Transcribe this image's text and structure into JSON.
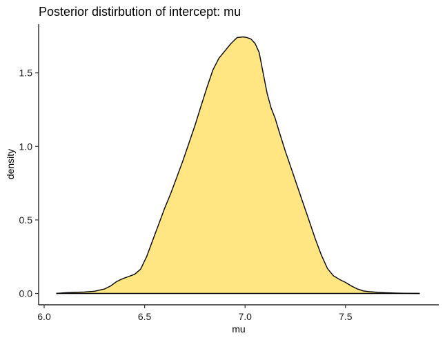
{
  "chart_data": {
    "type": "area",
    "title": "Posterior distirbution of intercept: mu",
    "xlabel": "mu",
    "ylabel": "density",
    "xlim": [
      6.06,
      7.87
    ],
    "ylim": [
      0.0,
      1.75
    ],
    "x_ticks": [
      6.0,
      6.5,
      7.0,
      7.5
    ],
    "x_tick_labels": [
      "6.0",
      "6.5",
      "7.0",
      "7.5"
    ],
    "y_ticks": [
      0.0,
      0.5,
      1.0,
      1.5
    ],
    "y_tick_labels": [
      "0.0",
      "0.5",
      "1.0",
      "1.5"
    ],
    "grid": false,
    "legend": "none",
    "fill_color": "#FFE682",
    "line_color": "#000000",
    "series": [
      {
        "x": [
          6.06,
          6.1,
          6.15,
          6.2,
          6.25,
          6.3,
          6.33,
          6.36,
          6.39,
          6.42,
          6.45,
          6.48,
          6.51,
          6.54,
          6.57,
          6.6,
          6.63,
          6.66,
          6.69,
          6.72,
          6.75,
          6.78,
          6.81,
          6.84,
          6.87,
          6.9,
          6.93,
          6.96,
          6.99,
          7.01,
          7.03,
          7.05,
          7.07,
          7.09,
          7.11,
          7.13,
          7.15,
          7.17,
          7.2,
          7.23,
          7.26,
          7.29,
          7.32,
          7.35,
          7.38,
          7.41,
          7.44,
          7.47,
          7.5,
          7.53,
          7.56,
          7.59,
          7.62,
          7.66,
          7.7,
          7.75,
          7.8,
          7.87
        ],
        "y": [
          0.0,
          0.004,
          0.008,
          0.01,
          0.015,
          0.03,
          0.05,
          0.08,
          0.1,
          0.115,
          0.13,
          0.165,
          0.25,
          0.36,
          0.47,
          0.58,
          0.68,
          0.79,
          0.9,
          1.02,
          1.14,
          1.27,
          1.4,
          1.52,
          1.6,
          1.65,
          1.7,
          1.74,
          1.745,
          1.74,
          1.73,
          1.7,
          1.64,
          1.5,
          1.36,
          1.26,
          1.19,
          1.1,
          0.97,
          0.85,
          0.73,
          0.61,
          0.49,
          0.37,
          0.26,
          0.17,
          0.12,
          0.095,
          0.075,
          0.05,
          0.03,
          0.017,
          0.012,
          0.008,
          0.005,
          0.003,
          0.001,
          0.0
        ]
      }
    ]
  }
}
